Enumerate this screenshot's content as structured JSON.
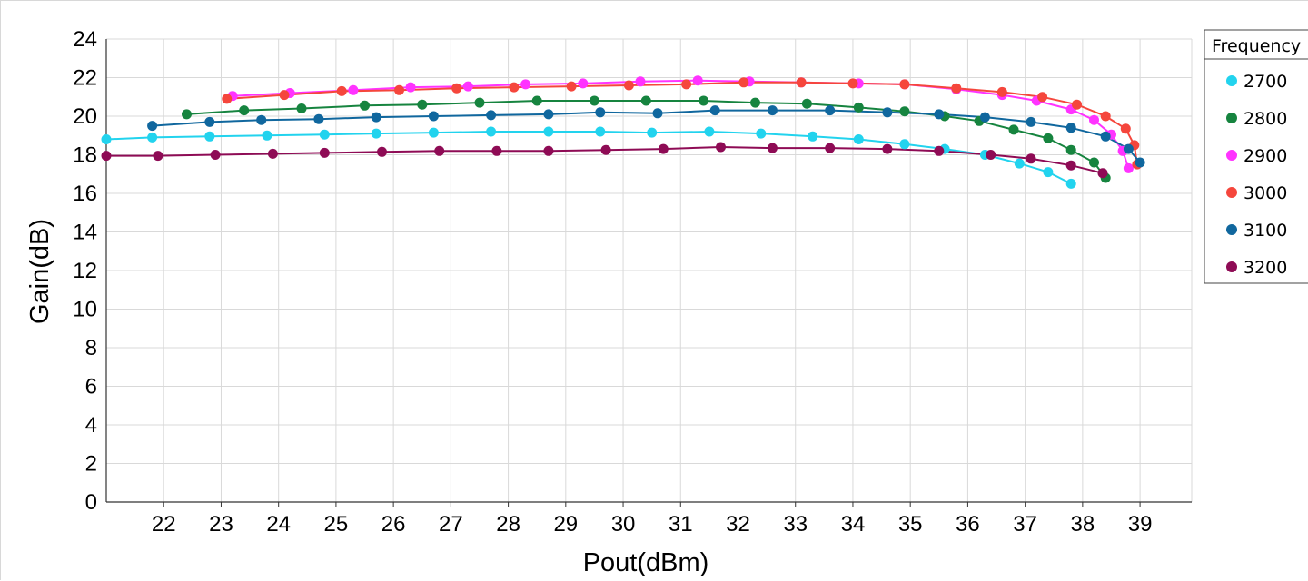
{
  "chart_data": {
    "type": "line",
    "xlabel": "Pout(dBm)",
    "ylabel": "Gain(dB)",
    "xlim": [
      21,
      39.9
    ],
    "ylim": [
      0,
      24
    ],
    "x_ticks": [
      22,
      23,
      24,
      25,
      26,
      27,
      28,
      29,
      30,
      31,
      32,
      33,
      34,
      35,
      36,
      37,
      38,
      39
    ],
    "y_ticks": [
      0,
      2,
      4,
      6,
      8,
      10,
      12,
      14,
      16,
      18,
      20,
      22,
      24
    ],
    "grid": true,
    "legend": {
      "title": "Frequency",
      "placement": "right"
    },
    "series": [
      {
        "name": "2700",
        "color": "#22d3ee",
        "x": [
          21.0,
          21.8,
          22.8,
          23.8,
          24.8,
          25.7,
          26.7,
          27.7,
          28.7,
          29.6,
          30.5,
          31.5,
          32.4,
          33.3,
          34.1,
          34.9,
          35.6,
          36.3,
          36.9,
          37.4,
          37.8
        ],
        "y": [
          18.8,
          18.9,
          18.95,
          19.0,
          19.05,
          19.1,
          19.15,
          19.2,
          19.2,
          19.2,
          19.15,
          19.2,
          19.1,
          18.95,
          18.8,
          18.55,
          18.3,
          18.0,
          17.55,
          17.1,
          16.5
        ]
      },
      {
        "name": "2800",
        "color": "#16843f",
        "x": [
          22.4,
          23.4,
          24.4,
          25.5,
          26.5,
          27.5,
          28.5,
          29.5,
          30.4,
          31.4,
          32.3,
          33.2,
          34.1,
          34.9,
          35.6,
          36.2,
          36.8,
          37.4,
          37.8,
          38.2,
          38.4
        ],
        "y": [
          20.1,
          20.3,
          20.4,
          20.55,
          20.6,
          20.7,
          20.8,
          20.8,
          20.8,
          20.8,
          20.7,
          20.65,
          20.45,
          20.25,
          20.0,
          19.75,
          19.3,
          18.85,
          18.25,
          17.6,
          16.8
        ]
      },
      {
        "name": "2900",
        "color": "#ff33ff",
        "x": [
          23.2,
          24.2,
          25.3,
          26.3,
          27.3,
          28.3,
          29.3,
          30.3,
          31.3,
          32.2,
          33.1,
          34.1,
          34.9,
          35.8,
          36.6,
          37.2,
          37.8,
          38.2,
          38.5,
          38.7,
          38.8
        ],
        "y": [
          21.05,
          21.2,
          21.35,
          21.5,
          21.55,
          21.65,
          21.7,
          21.8,
          21.85,
          21.8,
          21.75,
          21.7,
          21.65,
          21.4,
          21.1,
          20.8,
          20.35,
          19.8,
          19.05,
          18.2,
          17.3
        ]
      },
      {
        "name": "3000",
        "color": "#f5463c",
        "x": [
          23.1,
          24.1,
          25.1,
          26.1,
          27.1,
          28.1,
          29.1,
          30.1,
          31.1,
          32.1,
          33.1,
          34.0,
          34.9,
          35.8,
          36.6,
          37.3,
          37.9,
          38.4,
          38.75,
          38.9,
          38.95
        ],
        "y": [
          20.9,
          21.1,
          21.3,
          21.35,
          21.45,
          21.5,
          21.55,
          21.6,
          21.65,
          21.75,
          21.75,
          21.7,
          21.65,
          21.45,
          21.25,
          21.0,
          20.6,
          20.0,
          19.35,
          18.5,
          17.5
        ]
      },
      {
        "name": "3100",
        "color": "#10679e",
        "x": [
          21.8,
          22.8,
          23.7,
          24.7,
          25.7,
          26.7,
          27.7,
          28.7,
          29.6,
          30.6,
          31.6,
          32.6,
          33.6,
          34.6,
          35.5,
          36.3,
          37.1,
          37.8,
          38.4,
          38.8,
          39.0
        ],
        "y": [
          19.5,
          19.7,
          19.8,
          19.85,
          19.95,
          20.0,
          20.05,
          20.1,
          20.2,
          20.15,
          20.3,
          20.3,
          20.3,
          20.2,
          20.1,
          19.95,
          19.7,
          19.4,
          18.95,
          18.3,
          17.6
        ]
      },
      {
        "name": "3200",
        "color": "#8e0b55",
        "x": [
          21.0,
          21.9,
          22.9,
          23.9,
          24.8,
          25.8,
          26.8,
          27.8,
          28.7,
          29.7,
          30.7,
          31.7,
          32.6,
          33.6,
          34.6,
          35.5,
          36.4,
          37.1,
          37.8,
          38.35
        ],
        "y": [
          17.95,
          17.95,
          18.0,
          18.05,
          18.1,
          18.15,
          18.2,
          18.2,
          18.2,
          18.25,
          18.3,
          18.4,
          18.35,
          18.35,
          18.3,
          18.2,
          18.0,
          17.8,
          17.45,
          17.05
        ]
      }
    ]
  }
}
